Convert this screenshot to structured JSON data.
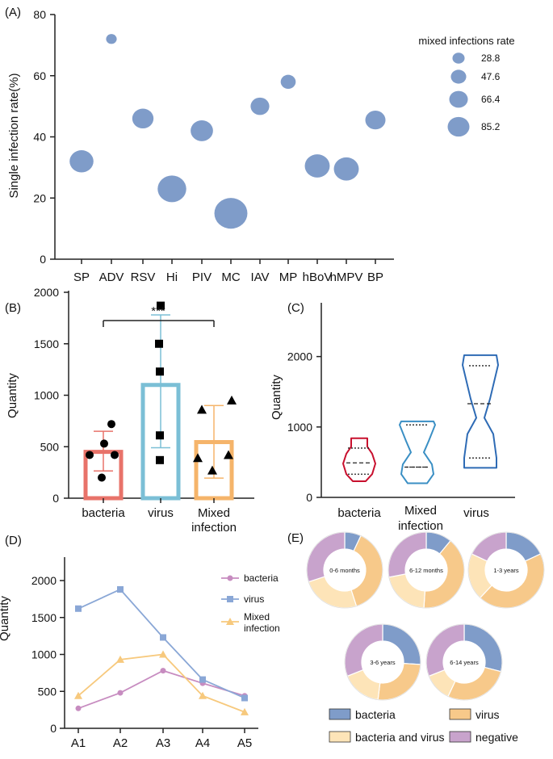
{
  "colors": {
    "bubble": "#7f9cc9",
    "bacteria_bar": "#e8736a",
    "virus_bar": "#7bbfd6",
    "mixed_bar": "#f5b46a",
    "violin_bacteria": "#c8102e",
    "violin_mixed": "#3a8fc4",
    "violin_virus": "#2e6bb5",
    "line_bacteria": "#c78cc0",
    "line_virus": "#8aa7d6",
    "line_mixed": "#f7c97d",
    "pie_bacteria": "#7f9cc9",
    "pie_virus": "#f7c98a",
    "pie_both": "#fde4b8",
    "pie_negative": "#c8a3cc"
  },
  "chart_data": [
    {
      "panel": "(A)",
      "type": "scatter",
      "ylabel": "Single infection rate(%)",
      "ylim": [
        0,
        80
      ],
      "yticks": [
        0,
        20,
        40,
        60,
        80
      ],
      "categories": [
        "SP",
        "ADV",
        "RSV",
        "Hi",
        "PIV",
        "MC",
        "IAV",
        "MP",
        "hBoV",
        "hMPV",
        "BP"
      ],
      "values": [
        32,
        72,
        46,
        23,
        42,
        15,
        50,
        58,
        30.5,
        29.5,
        45.5
      ],
      "sizes": [
        65,
        29,
        58,
        78,
        61,
        90,
        51,
        41,
        68,
        68,
        55
      ],
      "legend": {
        "title": "mixed infections rate",
        "entries": [
          "28.8",
          "47.6",
          "66.4",
          "85.2"
        ],
        "entry_values": [
          28.8,
          47.6,
          66.4,
          85.2
        ]
      }
    },
    {
      "panel": "(B)",
      "type": "bar",
      "ylabel": "Quantity",
      "ylim": [
        0,
        2000
      ],
      "yticks": [
        0,
        500,
        1000,
        1500,
        2000
      ],
      "categories": [
        "bacteria",
        "virus",
        "Mixed infection"
      ],
      "values": [
        450,
        1100,
        545
      ],
      "errors": [
        [
          265,
          650
        ],
        [
          490,
          1780
        ],
        [
          195,
          900
        ]
      ],
      "points": [
        [
          420,
          420,
          530,
          720,
          200
        ],
        [
          1870,
          1500,
          1230,
          610,
          370
        ],
        [
          860,
          950,
          390,
          420,
          270
        ]
      ],
      "markers": [
        "circle",
        "square",
        "triangle"
      ],
      "significance": "***"
    },
    {
      "panel": "(C)",
      "type": "violin",
      "ylabel": "Quantity",
      "ylim": [
        0,
        2300
      ],
      "yticks": [
        0,
        1000,
        2000
      ],
      "categories": [
        "bacteria",
        "Mixed infection",
        "virus"
      ],
      "ranges": [
        [
          230,
          840
        ],
        [
          200,
          1080
        ],
        [
          420,
          2020
        ]
      ],
      "quartiles": [
        [
          330,
          490,
          700
        ],
        [
          430,
          430,
          1030
        ],
        [
          560,
          1330,
          1870
        ]
      ]
    },
    {
      "panel": "(D)",
      "type": "line",
      "ylabel": "Quantity",
      "ylim": [
        0,
        2000
      ],
      "yticks": [
        0,
        500,
        1000,
        1500,
        2000
      ],
      "categories": [
        "A1",
        "A2",
        "A3",
        "A4",
        "A5"
      ],
      "series": [
        {
          "name": "bacteria",
          "values": [
            270,
            480,
            780,
            610,
            440
          ]
        },
        {
          "name": "virus",
          "values": [
            1620,
            1880,
            1230,
            660,
            410
          ]
        },
        {
          "name": "Mixed infection",
          "values": [
            440,
            930,
            1000,
            440,
            220
          ]
        }
      ]
    },
    {
      "panel": "(E)",
      "type": "pie",
      "charts": [
        {
          "label": "0-6 months",
          "values": [
            7,
            38,
            25,
            30
          ]
        },
        {
          "label": "6-12 months",
          "values": [
            11,
            40,
            21,
            28
          ]
        },
        {
          "label": "1-3 years",
          "values": [
            18,
            44,
            20,
            18
          ]
        },
        {
          "label": "3-6 years",
          "values": [
            26,
            26,
            17,
            31
          ]
        },
        {
          "label": "6-14 years",
          "values": [
            29,
            28,
            12,
            31
          ]
        }
      ],
      "legend": [
        "bacteria",
        "virus",
        "bacteria and virus",
        "negative"
      ]
    }
  ]
}
